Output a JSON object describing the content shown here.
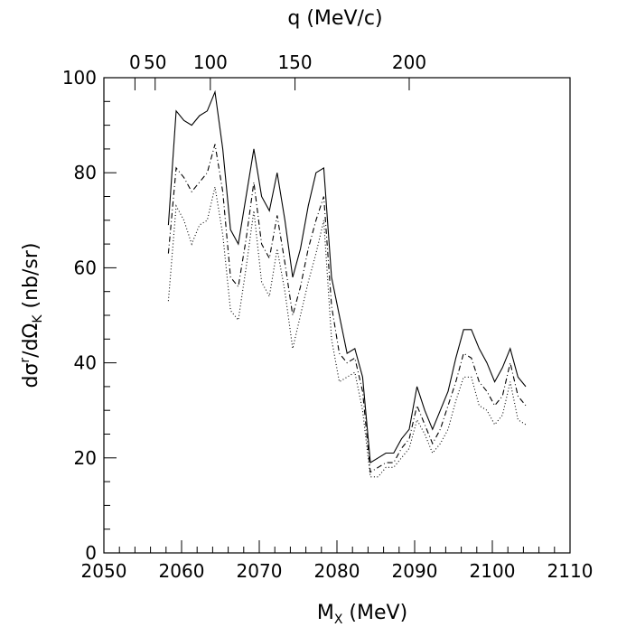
{
  "chart_data": {
    "type": "line",
    "xlabel": {
      "main": "M",
      "sub": "X",
      "unit": " (MeV)"
    },
    "ylabel": {
      "main": "dσ",
      "sup": "r",
      "mid": "/dΩ",
      "sub": "K",
      "unit": "  (nb/sr)"
    },
    "top_axis_label": "q  (MeV/c)",
    "xlim": [
      2050,
      2110
    ],
    "ylim": [
      0,
      100
    ],
    "x_ticks": [
      2050,
      2060,
      2070,
      2080,
      2090,
      2100,
      2110
    ],
    "y_ticks": [
      0,
      20,
      40,
      60,
      80,
      100
    ],
    "top_ticks": [
      {
        "label": "0",
        "x": 2054
      },
      {
        "label": "50",
        "x": 2056.6
      },
      {
        "label": "100",
        "x": 2063.7
      },
      {
        "label": "150",
        "x": 2074.6
      },
      {
        "label": "200",
        "x": 2089.3
      }
    ],
    "x_minor_step": 2,
    "y_minor_step": 5,
    "grid": false,
    "legend": "none",
    "series": [
      {
        "style": "solid",
        "points": [
          [
            2058.3,
            69
          ],
          [
            2059.3,
            93
          ],
          [
            2060.3,
            91
          ],
          [
            2061.3,
            90
          ],
          [
            2062.3,
            92
          ],
          [
            2063.3,
            93
          ],
          [
            2064.3,
            97
          ],
          [
            2065.3,
            85
          ],
          [
            2066.3,
            68
          ],
          [
            2067.3,
            65
          ],
          [
            2068.3,
            75
          ],
          [
            2069.3,
            85
          ],
          [
            2070.3,
            75
          ],
          [
            2071.3,
            72
          ],
          [
            2072.3,
            80
          ],
          [
            2073.3,
            70
          ],
          [
            2074.3,
            58
          ],
          [
            2075.3,
            64
          ],
          [
            2076.3,
            73
          ],
          [
            2077.3,
            80
          ],
          [
            2078.3,
            81
          ],
          [
            2079.3,
            58
          ],
          [
            2080.3,
            50
          ],
          [
            2081.3,
            42
          ],
          [
            2082.3,
            43
          ],
          [
            2083.3,
            37
          ],
          [
            2084.3,
            19
          ],
          [
            2085.3,
            20
          ],
          [
            2086.3,
            21
          ],
          [
            2087.3,
            21
          ],
          [
            2088.3,
            24
          ],
          [
            2089.3,
            26
          ],
          [
            2090.3,
            35
          ],
          [
            2091.3,
            30
          ],
          [
            2092.3,
            26
          ],
          [
            2093.3,
            30
          ],
          [
            2094.3,
            34
          ],
          [
            2095.3,
            41
          ],
          [
            2096.3,
            47
          ],
          [
            2097.3,
            47
          ],
          [
            2098.3,
            43
          ],
          [
            2099.3,
            40
          ],
          [
            2100.3,
            36
          ],
          [
            2101.3,
            39
          ],
          [
            2102.3,
            43
          ],
          [
            2103.3,
            37
          ],
          [
            2104.3,
            35
          ]
        ]
      },
      {
        "style": "dash-dot",
        "points": [
          [
            2058.3,
            63
          ],
          [
            2059.3,
            81
          ],
          [
            2060.3,
            79
          ],
          [
            2061.3,
            76
          ],
          [
            2062.3,
            78
          ],
          [
            2063.3,
            80
          ],
          [
            2064.3,
            86
          ],
          [
            2065.3,
            76
          ],
          [
            2066.3,
            58
          ],
          [
            2067.3,
            56
          ],
          [
            2068.3,
            66
          ],
          [
            2069.3,
            78
          ],
          [
            2070.3,
            65
          ],
          [
            2071.3,
            62
          ],
          [
            2072.3,
            71
          ],
          [
            2073.3,
            61
          ],
          [
            2074.3,
            50
          ],
          [
            2075.3,
            56
          ],
          [
            2076.3,
            64
          ],
          [
            2077.3,
            70
          ],
          [
            2078.3,
            75
          ],
          [
            2079.3,
            52
          ],
          [
            2080.3,
            42
          ],
          [
            2081.3,
            40
          ],
          [
            2082.3,
            41
          ],
          [
            2083.3,
            34
          ],
          [
            2084.3,
            17
          ],
          [
            2085.3,
            18
          ],
          [
            2086.3,
            19
          ],
          [
            2087.3,
            19
          ],
          [
            2088.3,
            22
          ],
          [
            2089.3,
            24
          ],
          [
            2090.3,
            31
          ],
          [
            2091.3,
            27
          ],
          [
            2092.3,
            23
          ],
          [
            2093.3,
            26
          ],
          [
            2094.3,
            31
          ],
          [
            2095.3,
            36
          ],
          [
            2096.3,
            42
          ],
          [
            2097.3,
            41
          ],
          [
            2098.3,
            36
          ],
          [
            2099.3,
            34
          ],
          [
            2100.3,
            31
          ],
          [
            2101.3,
            33
          ],
          [
            2102.3,
            40
          ],
          [
            2103.3,
            33
          ],
          [
            2104.3,
            31
          ]
        ]
      },
      {
        "style": "dotted",
        "points": [
          [
            2058.3,
            53
          ],
          [
            2059.3,
            73
          ],
          [
            2060.3,
            70
          ],
          [
            2061.3,
            65
          ],
          [
            2062.3,
            69
          ],
          [
            2063.3,
            70
          ],
          [
            2064.3,
            77
          ],
          [
            2065.3,
            67
          ],
          [
            2066.3,
            51
          ],
          [
            2067.3,
            49
          ],
          [
            2068.3,
            60
          ],
          [
            2069.3,
            72
          ],
          [
            2070.3,
            57
          ],
          [
            2071.3,
            54
          ],
          [
            2072.3,
            64
          ],
          [
            2073.3,
            55
          ],
          [
            2074.3,
            43
          ],
          [
            2075.3,
            50
          ],
          [
            2076.3,
            57
          ],
          [
            2077.3,
            63
          ],
          [
            2078.3,
            70
          ],
          [
            2079.3,
            45
          ],
          [
            2080.3,
            36
          ],
          [
            2081.3,
            37
          ],
          [
            2082.3,
            38
          ],
          [
            2083.3,
            30
          ],
          [
            2084.3,
            16
          ],
          [
            2085.3,
            16
          ],
          [
            2086.3,
            18
          ],
          [
            2087.3,
            18
          ],
          [
            2088.3,
            20
          ],
          [
            2089.3,
            22
          ],
          [
            2090.3,
            28
          ],
          [
            2091.3,
            25
          ],
          [
            2092.3,
            21
          ],
          [
            2093.3,
            23
          ],
          [
            2094.3,
            26
          ],
          [
            2095.3,
            32
          ],
          [
            2096.3,
            37
          ],
          [
            2097.3,
            37
          ],
          [
            2098.3,
            31
          ],
          [
            2099.3,
            30
          ],
          [
            2100.3,
            27
          ],
          [
            2101.3,
            29
          ],
          [
            2102.3,
            36
          ],
          [
            2103.3,
            28
          ],
          [
            2104.3,
            27
          ]
        ]
      }
    ]
  }
}
